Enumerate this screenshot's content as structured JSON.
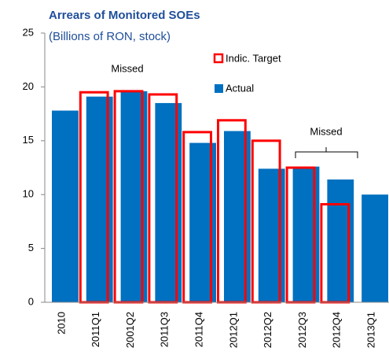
{
  "chart_data": {
    "type": "bar",
    "title": "Arrears of Monitored SOEs",
    "subtitle": "(Billions of RON, stock)",
    "categories": [
      "2010",
      "2011Q1",
      "2001Q2",
      "2011Q3",
      "2011Q4",
      "2012Q1",
      "2012Q2",
      "2012Q3",
      "2012Q4",
      "2013Q1"
    ],
    "series": [
      {
        "name": "Indic. Target",
        "color": "#ff0000",
        "values": [
          null,
          19.5,
          19.6,
          19.3,
          15.8,
          16.9,
          15.0,
          12.5,
          9.1,
          null
        ]
      },
      {
        "name": "Actual",
        "color": "#0070c0",
        "values": [
          17.8,
          19.1,
          19.6,
          18.5,
          14.8,
          15.9,
          12.4,
          12.6,
          11.4,
          10.0
        ]
      }
    ],
    "annotations": [
      "Missed",
      "Missed"
    ],
    "ylim": [
      0,
      25
    ],
    "yticks": [
      0,
      5,
      10,
      15,
      20,
      25
    ]
  }
}
